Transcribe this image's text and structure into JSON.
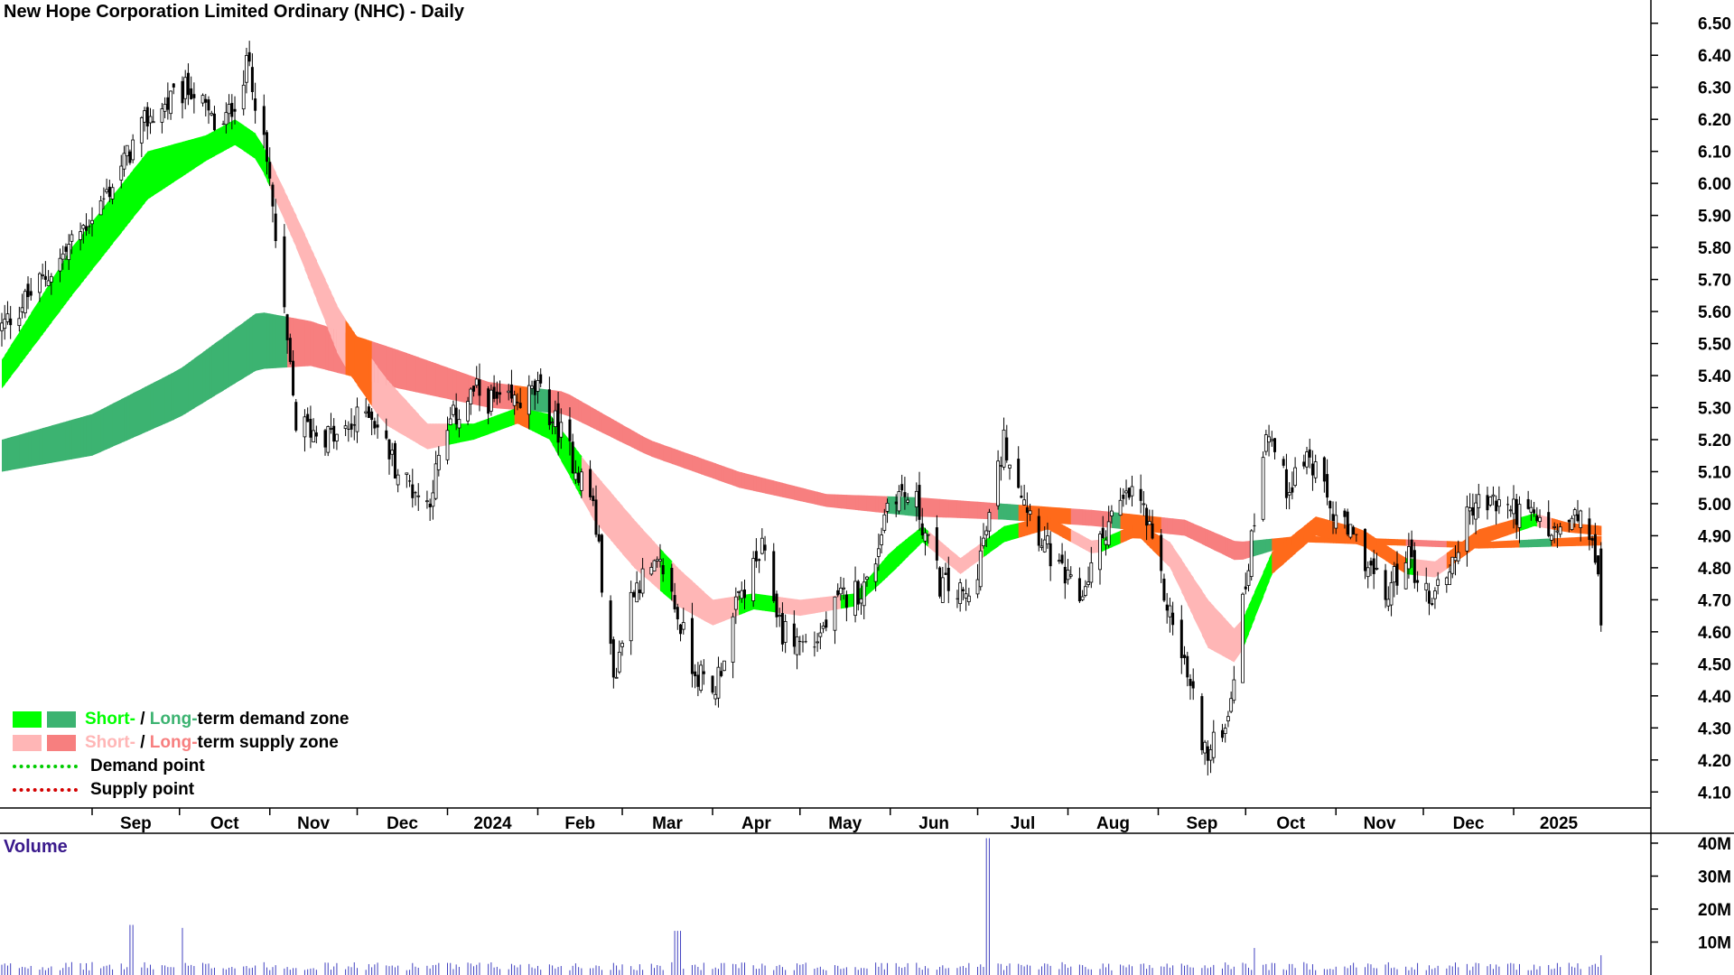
{
  "title": "New Hope Corporation Limited Ordinary (NHC) - Daily",
  "volume_label": "Volume",
  "legend": {
    "short_word": "Short-",
    "slash": " / ",
    "long_word": "Long-",
    "demand_rest": "term demand zone",
    "supply_rest": "term supply zone",
    "demand_point": "Demand point",
    "supply_point": "Supply point"
  },
  "colors": {
    "short_demand": "#00ff00",
    "long_demand": "#3cb371",
    "short_supply": "#ffb6b6",
    "long_supply": "#f77f7f",
    "crossover": "#ff6a1a",
    "demand_point": "#00cc00",
    "supply_point": "#d40000",
    "candle": "#000000",
    "volume": "#4040c0"
  },
  "chart_data": {
    "type": "candlestick",
    "title": "New Hope Corporation Limited Ordinary (NHC) - Daily",
    "price_axis": {
      "ylim": [
        4.05,
        6.55
      ],
      "ticks": [
        "6.50",
        "6.40",
        "6.30",
        "6.20",
        "6.10",
        "6.00",
        "5.90",
        "5.80",
        "5.70",
        "5.60",
        "5.50",
        "5.40",
        "5.30",
        "5.20",
        "5.10",
        "5.00",
        "4.90",
        "4.80",
        "4.70",
        "4.60",
        "4.50",
        "4.40",
        "4.30",
        "4.20",
        "4.10"
      ]
    },
    "volume_axis": {
      "ylim": [
        0,
        43
      ],
      "unit": "M",
      "ticks": [
        "40M",
        "30M",
        "20M",
        "10M"
      ]
    },
    "x_axis_labels": [
      "Sep",
      "Oct",
      "Nov",
      "Dec",
      "2024",
      "Feb",
      "Mar",
      "Apr",
      "May",
      "Jun",
      "Jul",
      "Aug",
      "Sep",
      "Oct",
      "Nov",
      "Dec",
      "2025"
    ],
    "price_keypoints": [
      [
        "2023-08-01",
        5.55
      ],
      [
        "2023-08-20",
        5.75
      ],
      [
        "2023-09-05",
        5.95
      ],
      [
        "2023-09-20",
        6.2
      ],
      [
        "2023-10-05",
        6.3
      ],
      [
        "2023-10-15",
        6.15
      ],
      [
        "2023-10-25",
        6.38
      ],
      [
        "2023-11-01",
        6.0
      ],
      [
        "2023-11-05",
        5.65
      ],
      [
        "2023-11-10",
        5.25
      ],
      [
        "2023-11-25",
        5.2
      ],
      [
        "2023-12-05",
        5.3
      ],
      [
        "2023-12-15",
        5.1
      ],
      [
        "2023-12-25",
        5.0
      ],
      [
        "2024-01-02",
        5.25
      ],
      [
        "2024-01-10",
        5.35
      ],
      [
        "2024-01-20",
        5.3
      ],
      [
        "2024-02-01",
        5.35
      ],
      [
        "2024-02-10",
        5.2
      ],
      [
        "2024-02-20",
        5.0
      ],
      [
        "2024-02-27",
        4.45
      ],
      [
        "2024-03-05",
        4.75
      ],
      [
        "2024-03-15",
        4.8
      ],
      [
        "2024-03-25",
        4.5
      ],
      [
        "2024-04-01",
        4.4
      ],
      [
        "2024-04-10",
        4.7
      ],
      [
        "2024-04-18",
        4.85
      ],
      [
        "2024-04-25",
        4.6
      ],
      [
        "2024-05-05",
        4.55
      ],
      [
        "2024-05-15",
        4.7
      ],
      [
        "2024-05-25",
        4.75
      ],
      [
        "2024-06-01",
        5.05
      ],
      [
        "2024-06-10",
        5.0
      ],
      [
        "2024-06-18",
        4.75
      ],
      [
        "2024-06-28",
        4.7
      ],
      [
        "2024-07-05",
        4.95
      ],
      [
        "2024-07-10",
        5.2
      ],
      [
        "2024-07-20",
        4.95
      ],
      [
        "2024-07-28",
        4.8
      ],
      [
        "2024-08-05",
        4.7
      ],
      [
        "2024-08-15",
        4.95
      ],
      [
        "2024-08-25",
        5.05
      ],
      [
        "2024-09-02",
        4.75
      ],
      [
        "2024-09-10",
        4.5
      ],
      [
        "2024-09-18",
        4.2
      ],
      [
        "2024-09-25",
        4.35
      ],
      [
        "2024-10-01",
        4.75
      ],
      [
        "2024-10-08",
        5.25
      ],
      [
        "2024-10-15",
        5.05
      ],
      [
        "2024-10-22",
        5.15
      ],
      [
        "2024-11-01",
        4.95
      ],
      [
        "2024-11-10",
        4.85
      ],
      [
        "2024-11-18",
        4.7
      ],
      [
        "2024-11-25",
        4.85
      ],
      [
        "2024-12-03",
        4.7
      ],
      [
        "2024-12-10",
        4.8
      ],
      [
        "2024-12-18",
        5.0
      ],
      [
        "2024-12-28",
        5.0
      ],
      [
        "2025-01-08",
        4.95
      ],
      [
        "2025-01-15",
        4.9
      ],
      [
        "2025-01-22",
        4.95
      ],
      [
        "2025-01-28",
        4.9
      ],
      [
        "2025-02-01",
        4.6
      ]
    ],
    "last_bar": {
      "open": 4.86,
      "close": 4.62,
      "high": 4.88,
      "low": 4.6
    },
    "volume_spikes": [
      [
        "2023-09-15",
        15.2
      ],
      [
        "2023-10-01",
        14.3
      ],
      [
        "2024-03-20",
        13.4
      ],
      [
        "2024-07-05",
        41.5
      ],
      [
        "2024-10-05",
        8.2
      ],
      [
        "2025-02-01",
        6.0
      ]
    ],
    "volume_base": 2.8,
    "bands": {
      "short_term": [
        [
          "2023-08-01",
          5.36,
          5.45
        ],
        [
          "2023-08-25",
          5.65,
          5.8
        ],
        [
          "2023-09-20",
          5.95,
          6.1
        ],
        [
          "2023-10-10",
          6.07,
          6.15
        ],
        [
          "2023-10-20",
          6.12,
          6.2
        ],
        [
          "2023-10-28",
          6.07,
          6.15
        ],
        [
          "2023-11-10",
          5.8,
          5.9
        ],
        [
          "2023-11-25",
          5.45,
          5.6
        ],
        [
          "2023-12-10",
          5.25,
          5.4
        ],
        [
          "2023-12-25",
          5.17,
          5.25
        ],
        [
          "2024-01-10",
          5.2,
          5.25
        ],
        [
          "2024-01-25",
          5.25,
          5.3
        ],
        [
          "2024-02-05",
          5.2,
          5.28
        ],
        [
          "2024-02-20",
          4.95,
          5.1
        ],
        [
          "2024-03-05",
          4.8,
          4.95
        ],
        [
          "2024-03-20",
          4.68,
          4.8
        ],
        [
          "2024-04-01",
          4.62,
          4.7
        ],
        [
          "2024-04-15",
          4.67,
          4.72
        ],
        [
          "2024-05-01",
          4.65,
          4.7
        ],
        [
          "2024-05-20",
          4.68,
          4.72
        ],
        [
          "2024-06-01",
          4.78,
          4.85
        ],
        [
          "2024-06-12",
          4.88,
          4.93
        ],
        [
          "2024-06-25",
          4.78,
          4.83
        ],
        [
          "2024-07-10",
          4.88,
          4.93
        ],
        [
          "2024-07-25",
          4.92,
          4.96
        ],
        [
          "2024-08-10",
          4.84,
          4.88
        ],
        [
          "2024-08-25",
          4.9,
          4.94
        ],
        [
          "2024-09-05",
          4.8,
          4.88
        ],
        [
          "2024-09-18",
          4.55,
          4.7
        ],
        [
          "2024-09-28",
          4.5,
          4.6
        ],
        [
          "2024-10-10",
          4.78,
          4.85
        ],
        [
          "2024-10-25",
          4.9,
          4.96
        ],
        [
          "2024-11-10",
          4.87,
          4.92
        ],
        [
          "2024-11-25",
          4.78,
          4.83
        ],
        [
          "2024-12-05",
          4.77,
          4.82
        ],
        [
          "2024-12-20",
          4.87,
          4.92
        ],
        [
          "2025-01-08",
          4.93,
          4.97
        ],
        [
          "2025-01-20",
          4.91,
          4.94
        ],
        [
          "2025-02-01",
          4.9,
          4.93
        ]
      ],
      "long_term": [
        [
          "2023-08-01",
          5.1,
          5.2
        ],
        [
          "2023-09-01",
          5.15,
          5.28
        ],
        [
          "2023-10-01",
          5.27,
          5.42
        ],
        [
          "2023-10-28",
          5.42,
          5.6
        ],
        [
          "2023-11-15",
          5.43,
          5.57
        ],
        [
          "2023-12-15",
          5.36,
          5.48
        ],
        [
          "2024-01-15",
          5.3,
          5.38
        ],
        [
          "2024-02-10",
          5.28,
          5.35
        ],
        [
          "2024-03-10",
          5.15,
          5.2
        ],
        [
          "2024-04-10",
          5.05,
          5.1
        ],
        [
          "2024-05-10",
          4.99,
          5.03
        ],
        [
          "2024-06-10",
          4.96,
          5.02
        ],
        [
          "2024-07-10",
          4.95,
          5.0
        ],
        [
          "2024-08-10",
          4.93,
          4.98
        ],
        [
          "2024-09-10",
          4.9,
          4.95
        ],
        [
          "2024-09-28",
          4.82,
          4.88
        ],
        [
          "2024-10-20",
          4.88,
          4.9
        ],
        [
          "2024-11-20",
          4.87,
          4.89
        ],
        [
          "2024-12-20",
          4.86,
          4.88
        ],
        [
          "2025-02-01",
          4.87,
          4.9
        ]
      ]
    }
  }
}
